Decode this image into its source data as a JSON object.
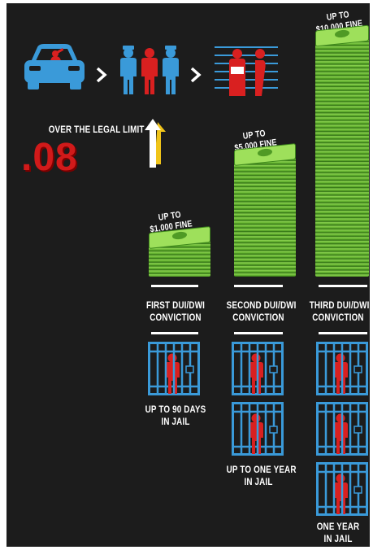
{
  "legal_limit": {
    "title": "OVER THE LEGAL LIMIT",
    "value": ".08"
  },
  "columns": [
    {
      "fine": [
        "UP TO",
        "$1,000 FINE"
      ],
      "conviction": [
        "FIRST DUI/DWI",
        "CONVICTION"
      ],
      "jail": [
        "UP TO 90 DAYS",
        "IN JAIL"
      ],
      "jail_cells": 1
    },
    {
      "fine": [
        "UP TO",
        "$5,000 FINE"
      ],
      "conviction": [
        "SECOND DUI/DWI",
        "CONVICTION"
      ],
      "jail": [
        "UP TO ONE YEAR",
        "IN JAIL"
      ],
      "jail_cells": 2
    },
    {
      "fine": [
        "UP TO",
        "$10,000 FINE"
      ],
      "conviction": [
        "THIRD DUI/DWI",
        "CONVICTION"
      ],
      "jail": [
        "ONE YEAR",
        "IN JAIL"
      ],
      "jail_cells": 3
    }
  ],
  "colors": {
    "background": "#1c1c1c",
    "icon_blue": "#3a9ad9",
    "icon_red": "#d92020",
    "money_green": "#6cc63a",
    "arrow_yellow": "#f0c419"
  },
  "icons": [
    "car-icon",
    "chevron-right-icon",
    "police-arrest-icon",
    "chevron-right-icon",
    "mugshot-icon",
    "arrow-up-icon",
    "money-stack-icon",
    "jail-cell-icon"
  ]
}
